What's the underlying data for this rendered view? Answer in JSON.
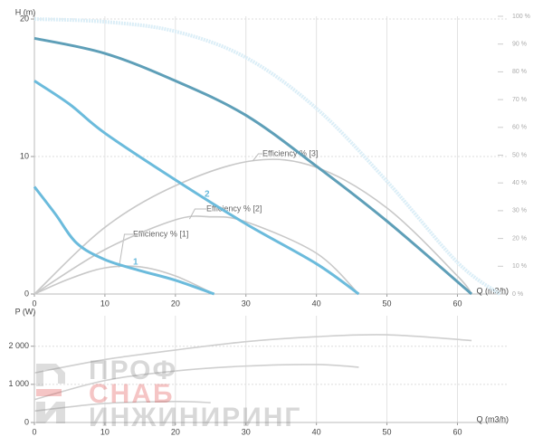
{
  "chart_data": [
    {
      "type": "line",
      "ylabel": "H (m)",
      "xlabel": "Q (m3/h)",
      "xlim": [
        0,
        67
      ],
      "ylim": [
        0,
        20.2
      ],
      "y2lim": [
        0,
        100
      ],
      "xticks": [
        0,
        10,
        20,
        30,
        40,
        50,
        60
      ],
      "yticks": [
        0,
        10,
        20
      ],
      "y2ticks": [
        {
          "value": 0,
          "label": "0 %"
        },
        {
          "value": 10,
          "label": "10 %"
        },
        {
          "value": 20,
          "label": "20 %"
        },
        {
          "value": 30,
          "label": "30 %"
        },
        {
          "value": 40,
          "label": "40 %"
        },
        {
          "value": 50,
          "label": "50 %"
        },
        {
          "value": 60,
          "label": "60 %"
        },
        {
          "value": 70,
          "label": "70 %"
        },
        {
          "value": 80,
          "label": "80 %"
        },
        {
          "value": 90,
          "label": "90 %"
        },
        {
          "value": 100,
          "label": "100 %"
        }
      ],
      "grid": true,
      "series": [
        {
          "color": "#5e9fb8",
          "x": [
            0,
            10,
            20,
            30,
            40,
            50,
            62
          ],
          "values": [
            18.6,
            17.5,
            15.5,
            13,
            9.3,
            5.3,
            0
          ]
        },
        {
          "name": "2",
          "color": "#6bbbdc",
          "x": [
            0,
            5,
            10,
            20,
            30,
            40,
            46
          ],
          "values": [
            15.5,
            13.8,
            11.7,
            8.3,
            5.1,
            2.2,
            0
          ]
        },
        {
          "name": "1",
          "color": "#6bbbdc",
          "x": [
            0,
            3,
            6,
            10,
            15,
            20,
            25.5
          ],
          "values": [
            7.8,
            5.8,
            3.7,
            2.5,
            1.7,
            1.0,
            0
          ]
        },
        {
          "color": "#dbeef7",
          "x": [
            0,
            10,
            20,
            30,
            40,
            50,
            60,
            66
          ],
          "values": [
            20,
            19.8,
            19.1,
            17.2,
            13.5,
            8.2,
            2.3,
            0
          ]
        },
        {
          "name": "Efficiency % [1]",
          "color": "#c8c8c8",
          "axis": "y2",
          "x": [
            0,
            5,
            10,
            15,
            20,
            25.5
          ],
          "values": [
            0,
            5.5,
            9.4,
            9.8,
            6.5,
            0
          ]
        },
        {
          "name": "Efficiency % [2]",
          "color": "#c8c8c8",
          "axis": "y2",
          "x": [
            0,
            10,
            20,
            25,
            30,
            40,
            46
          ],
          "values": [
            0,
            16,
            26.7,
            27.8,
            26,
            14.7,
            0
          ]
        },
        {
          "name": "Efficiency % [3]",
          "color": "#c8c8c8",
          "axis": "y2",
          "x": [
            0,
            10,
            20,
            31,
            40,
            50,
            60,
            62
          ],
          "values": [
            0,
            24,
            39,
            48,
            45.6,
            31,
            6.5,
            0
          ]
        }
      ]
    },
    {
      "type": "line",
      "ylabel": "P (W)",
      "xlabel": "Q (m3/h)",
      "xlim": [
        0,
        67
      ],
      "ylim": [
        0,
        2800
      ],
      "xticks": [
        0,
        10,
        20,
        30,
        40,
        50,
        60
      ],
      "yticks": [
        0,
        {
          "value": 1000,
          "label": "1 000"
        },
        {
          "value": 2000,
          "label": "2 000"
        }
      ],
      "grid": true,
      "series": [
        {
          "color": "#cfcfcf",
          "x": [
            0,
            10,
            20,
            30,
            40,
            50,
            62
          ],
          "values": [
            1300,
            1650,
            1900,
            2120,
            2250,
            2300,
            2150
          ]
        },
        {
          "color": "#cfcfcf",
          "x": [
            0,
            10,
            20,
            30,
            40,
            46
          ],
          "values": [
            600,
            1100,
            1350,
            1480,
            1520,
            1450
          ]
        },
        {
          "color": "#cfcfcf",
          "x": [
            0,
            10,
            20,
            25
          ],
          "values": [
            300,
            500,
            550,
            520
          ]
        }
      ]
    }
  ],
  "watermark": {
    "lines": [
      "ПРОФ",
      "СНАБ",
      "ИНЖИНИРИНГ"
    ]
  }
}
